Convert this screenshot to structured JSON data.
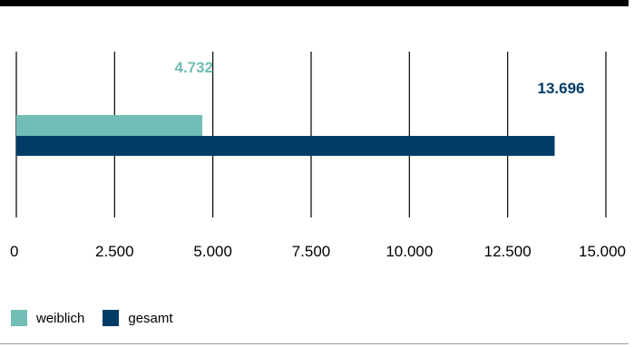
{
  "chart_data": {
    "type": "bar",
    "orientation": "horizontal",
    "xlim": [
      0,
      15000
    ],
    "x_ticks": [
      "0",
      "2.500",
      "5.000",
      "7.500",
      "10.000",
      "12.500",
      "15.000"
    ],
    "x_tick_values": [
      0,
      2500,
      5000,
      7500,
      10000,
      12500,
      15000
    ],
    "grid": true,
    "legend_position": "bottom-left",
    "series": [
      {
        "name": "weiblich",
        "value": 4732,
        "label": "4.732",
        "color": "#72bdb5"
      },
      {
        "name": "gesamt",
        "value": 13696,
        "label": "13.696",
        "color": "#003c66"
      }
    ]
  }
}
